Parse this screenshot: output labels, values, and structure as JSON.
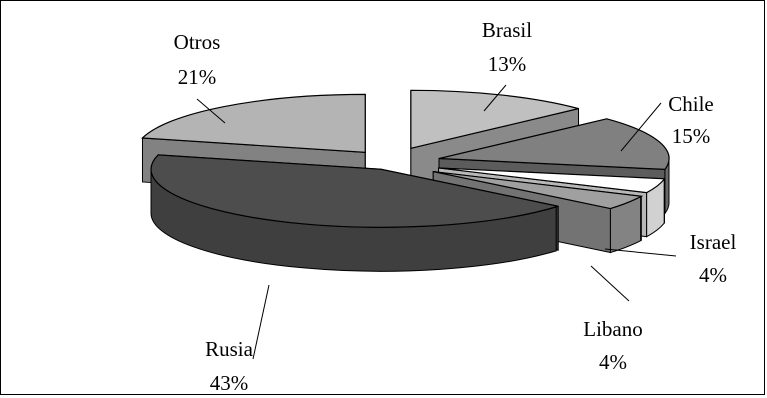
{
  "chart_data": {
    "type": "pie",
    "title": "",
    "style": "3d-exploded",
    "slices": [
      {
        "label": "Brasil",
        "value": 13,
        "value_label": "13%",
        "color": "#c0c0c0"
      },
      {
        "label": "Chile",
        "value": 15,
        "value_label": "15%",
        "color": "#808080"
      },
      {
        "label": "Israel",
        "value": 4,
        "value_label": "4%",
        "color": "#ffffff"
      },
      {
        "label": "Libano",
        "value": 4,
        "value_label": "4%",
        "color": "#a0a0a0"
      },
      {
        "label": "Rusia",
        "value": 43,
        "value_label": "43%",
        "color": "#4d4d4d"
      },
      {
        "label": "Otros",
        "value": 21,
        "value_label": "21%",
        "color": "#b4b4b4"
      }
    ]
  }
}
